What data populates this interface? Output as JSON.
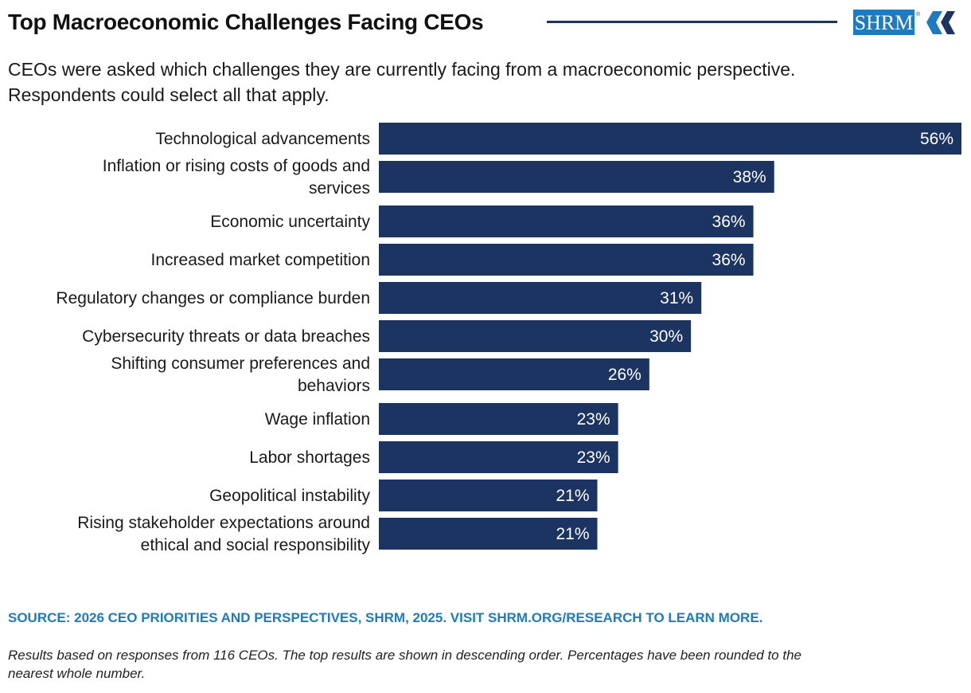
{
  "header": {
    "title": "Top Macroeconomic Challenges Facing CEOs",
    "subtitle_lines": [
      "CEOs were asked which challenges they are currently facing from a macroeconomic perspective.",
      "Respondents could select all that apply."
    ],
    "logo_text": "SHRM",
    "logo_mark": "®"
  },
  "colors": {
    "bar": "#1c3461",
    "bar_label": "#ffffff",
    "source": "#1e7bc2",
    "logo_blue": "#1e7bc2"
  },
  "chart_data": {
    "type": "bar",
    "orientation": "horizontal",
    "categories": [
      [
        "Technological advancements"
      ],
      [
        "Inflation or rising costs of goods and",
        "services"
      ],
      [
        "Economic uncertainty"
      ],
      [
        "Increased market competition"
      ],
      [
        "Regulatory changes or compliance burden"
      ],
      [
        "Cybersecurity threats or data breaches"
      ],
      [
        "Shifting consumer preferences and",
        "behaviors"
      ],
      [
        "Wage inflation"
      ],
      [
        "Labor shortages"
      ],
      [
        "Geopolitical instability"
      ],
      [
        "Rising stakeholder expectations around",
        "ethical and social responsibility"
      ]
    ],
    "values": [
      56,
      38,
      36,
      36,
      31,
      30,
      26,
      23,
      23,
      21,
      21
    ],
    "value_labels": [
      "56%",
      "38%",
      "36%",
      "36%",
      "31%",
      "30%",
      "26%",
      "23%",
      "23%",
      "21%",
      "21%"
    ],
    "unit": "%",
    "xlim": [
      0,
      56
    ],
    "grid": false,
    "legend": "none"
  },
  "footer": {
    "source": "SOURCE: 2026 CEO PRIORITIES AND PERSPECTIVES, SHRM, 2025. VISIT SHRM.ORG/RESEARCH TO LEARN MORE.",
    "note_lines": [
      "Results based on responses from 116 CEOs. The top results are shown in descending order. Percentages have been rounded to the",
      "nearest whole number."
    ]
  }
}
